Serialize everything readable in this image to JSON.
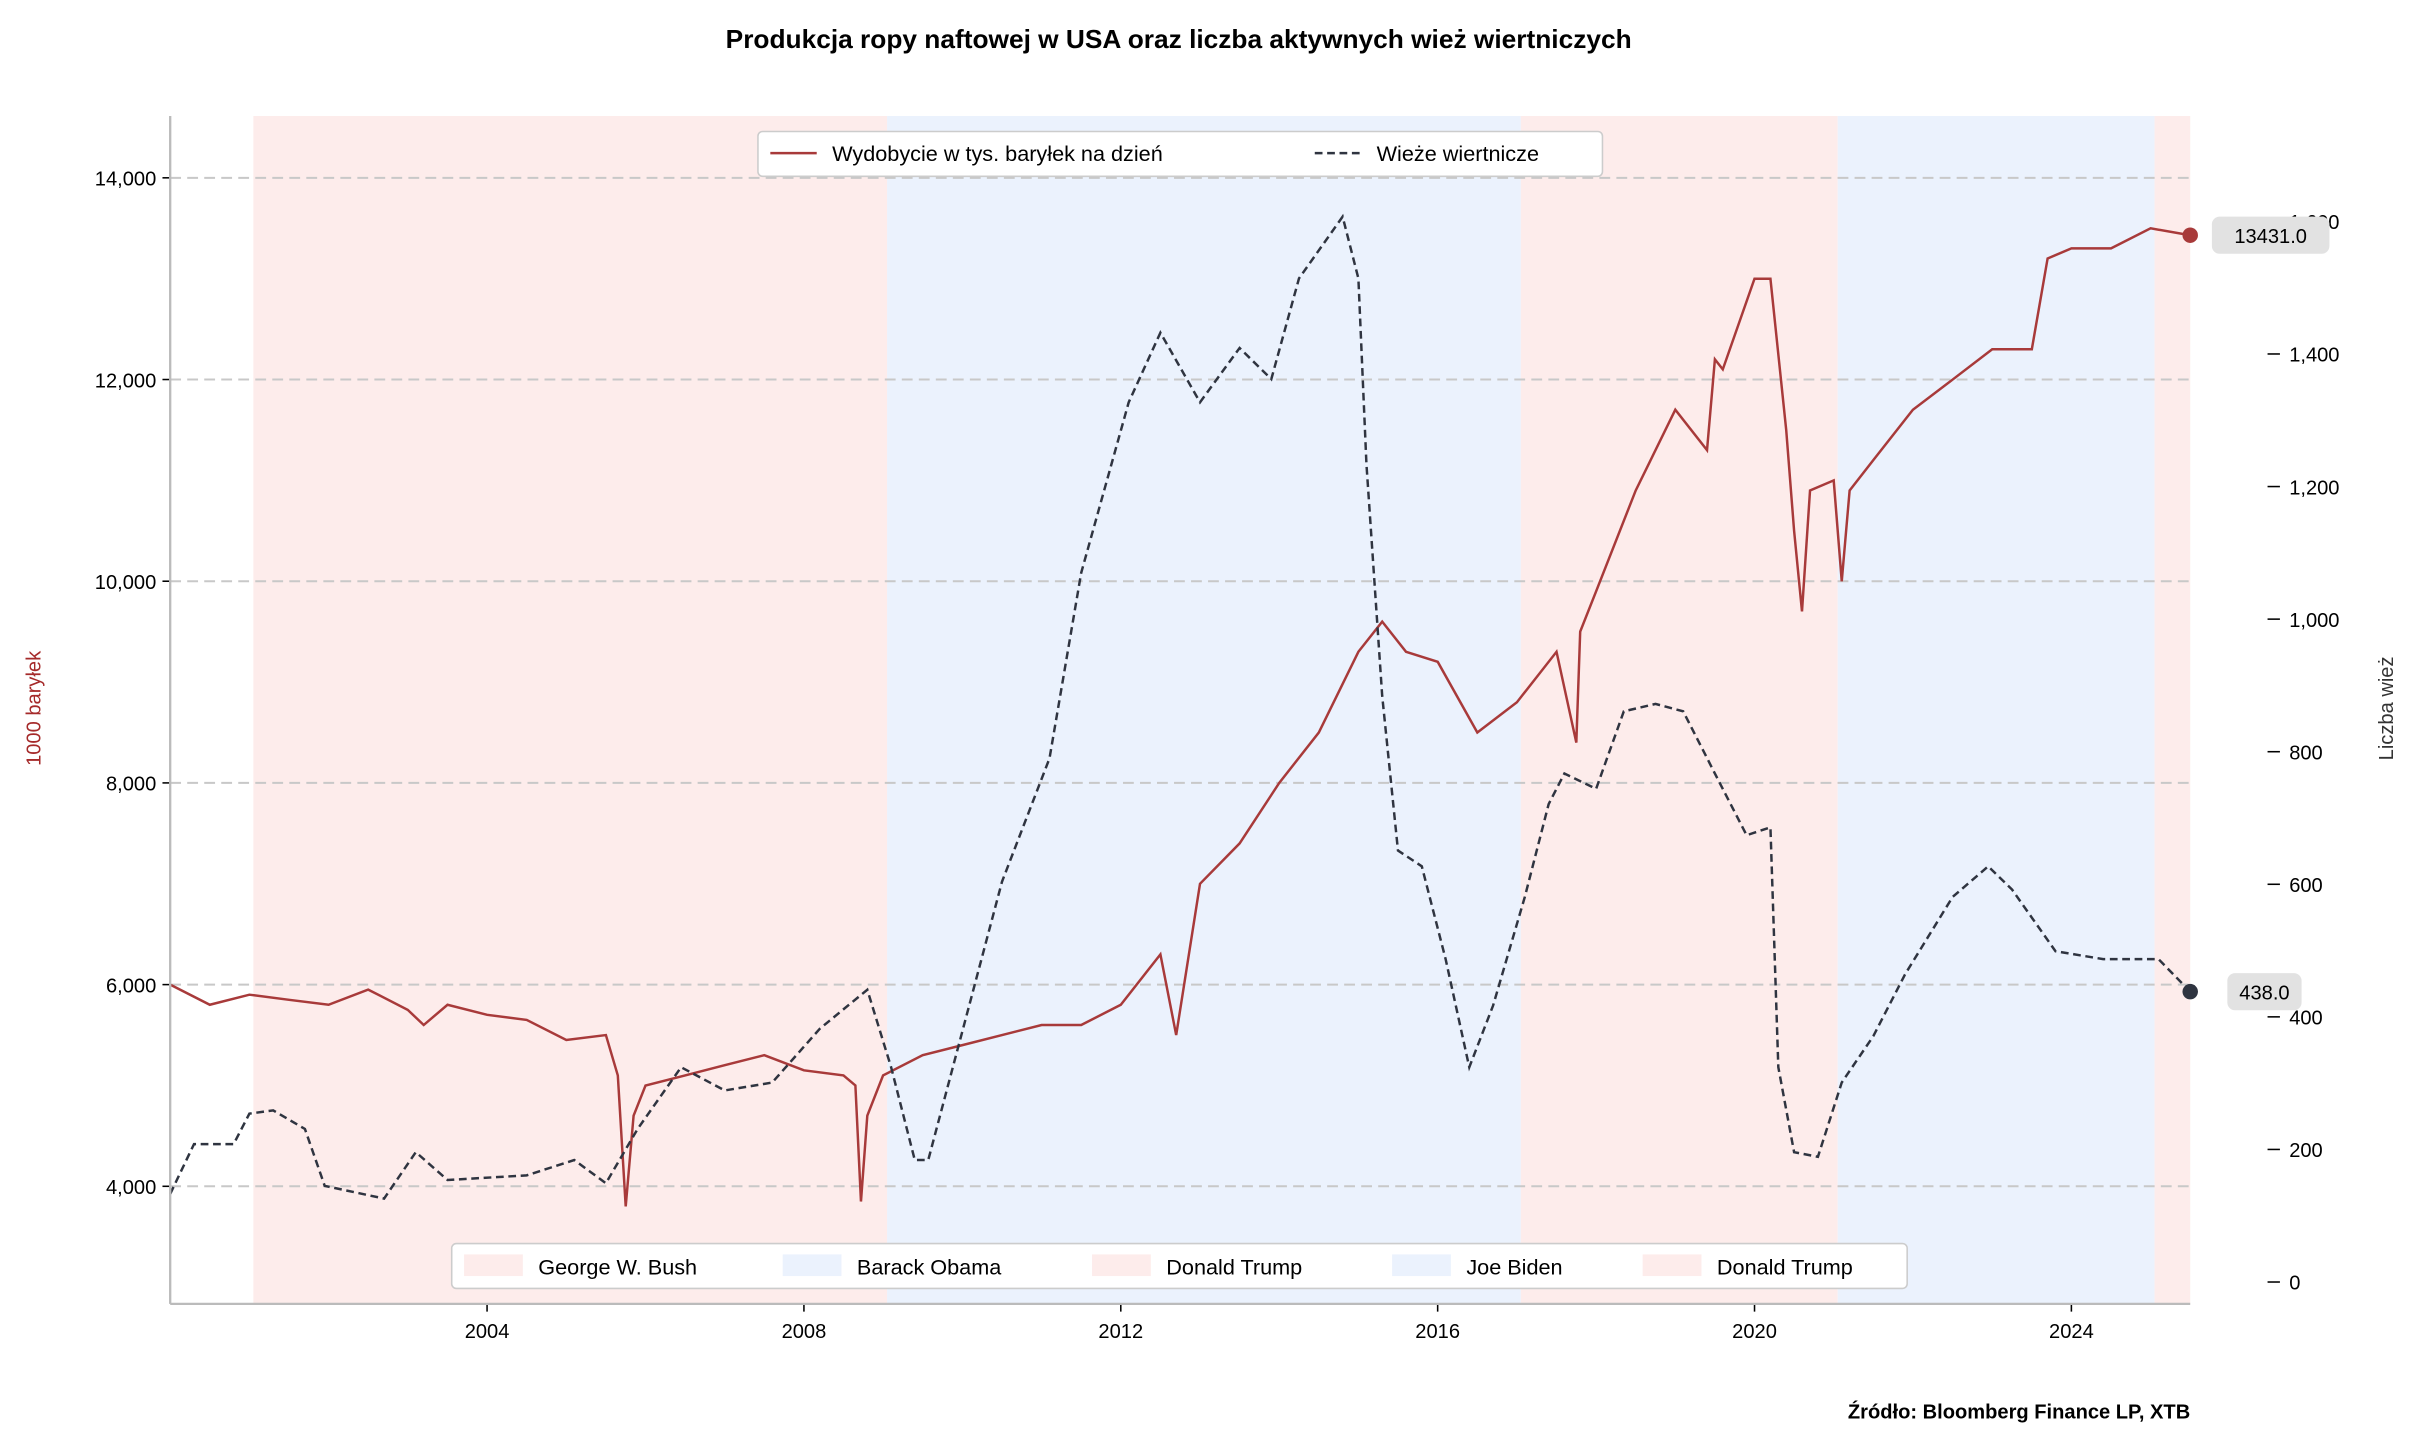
{
  "chart_data": {
    "type": "line",
    "title": "Produkcja ropy naftowej w USA oraz liczba aktywnych wież wiertniczych",
    "source": "Źródło: Bloomberg Finance LP, XTB",
    "xlim": [
      2000.0,
      2025.5
    ],
    "x_ticks": [
      "2004",
      "2008",
      "2012",
      "2016",
      "2020",
      "2024"
    ],
    "x_tick_values": [
      2004,
      2008,
      2012,
      2016,
      2020,
      2024
    ],
    "left_axis": {
      "label": "1000 baryłek",
      "ylim": [
        2834,
        14613
      ],
      "ticks": [
        4000,
        6000,
        8000,
        10000,
        12000,
        14000
      ],
      "tick_labels": [
        "4,000",
        "6,000",
        "8,000",
        "10,000",
        "12,000",
        "14,000"
      ],
      "color": "#a52a2a"
    },
    "right_axis": {
      "label": "Liczba wież",
      "ylim": [
        -33,
        1759
      ],
      "ticks": [
        0,
        200,
        400,
        600,
        800,
        1000,
        1200,
        1400,
        1600
      ],
      "tick_labels": [
        "0",
        "200",
        "400",
        "600",
        "800",
        "1,000",
        "1,200",
        "1,400",
        "1,600"
      ]
    },
    "grid": "horizontal dashed (left axis)",
    "legend_placement": "top-center",
    "series": [
      {
        "name": "Wydobycie w tys. baryłek na dzień",
        "axis": "left",
        "color": "#a83a3a",
        "style": "solid",
        "x": [
          2000.0,
          2000.5,
          2001.0,
          2001.5,
          2002.0,
          2002.5,
          2003.0,
          2003.2,
          2003.5,
          2004.0,
          2004.5,
          2005.0,
          2005.5,
          2005.65,
          2005.75,
          2005.85,
          2006.0,
          2006.5,
          2007.0,
          2007.5,
          2008.0,
          2008.5,
          2008.65,
          2008.72,
          2008.8,
          2009.0,
          2009.5,
          2010.0,
          2010.5,
          2011.0,
          2011.5,
          2012.0,
          2012.5,
          2012.7,
          2013.0,
          2013.5,
          2014.0,
          2014.5,
          2015.0,
          2015.3,
          2015.6,
          2016.0,
          2016.5,
          2017.0,
          2017.5,
          2017.75,
          2017.8,
          2018.0,
          2018.5,
          2019.0,
          2019.4,
          2019.5,
          2019.6,
          2020.0,
          2020.2,
          2020.4,
          2020.5,
          2020.6,
          2020.7,
          2021.0,
          2021.1,
          2021.2,
          2021.5,
          2022.0,
          2022.5,
          2023.0,
          2023.5,
          2023.7,
          2024.0,
          2024.5,
          2025.0,
          2025.5
        ],
        "values": [
          6000,
          5800,
          5900,
          5850,
          5800,
          5950,
          5750,
          5600,
          5800,
          5700,
          5650,
          5450,
          5500,
          5100,
          3800,
          4700,
          5000,
          5100,
          5200,
          5300,
          5150,
          5100,
          5000,
          3850,
          4700,
          5100,
          5300,
          5400,
          5500,
          5600,
          5600,
          5800,
          6300,
          5500,
          7000,
          7400,
          8000,
          8500,
          9300,
          9600,
          9300,
          9200,
          8500,
          8800,
          9300,
          8400,
          9500,
          9900,
          10900,
          11700,
          11300,
          12200,
          12100,
          13000,
          13000,
          11500,
          10500,
          9700,
          10900,
          11000,
          10000,
          10900,
          11200,
          11700,
          12000,
          12300,
          12300,
          13200,
          13300,
          13300,
          13500,
          13431
        ]
      },
      {
        "name": "Wieże wiertnicze",
        "axis": "right",
        "color": "#2f3440",
        "style": "dashed",
        "x": [
          2000.0,
          2000.3,
          2000.8,
          2001.0,
          2001.3,
          2001.7,
          2001.95,
          2002.7,
          2003.1,
          2003.5,
          2004.5,
          2005.1,
          2005.5,
          2005.9,
          2006.45,
          2007.0,
          2007.6,
          2008.2,
          2008.8,
          2009.1,
          2009.4,
          2009.57,
          2010.5,
          2011.1,
          2011.5,
          2012.1,
          2012.5,
          2013.0,
          2013.5,
          2013.9,
          2014.25,
          2014.8,
          2015.0,
          2015.1,
          2015.3,
          2015.5,
          2015.8,
          2016.1,
          2016.4,
          2016.7,
          2017.1,
          2017.4,
          2017.6,
          2018.0,
          2018.35,
          2018.75,
          2019.1,
          2019.5,
          2019.9,
          2020.2,
          2020.3,
          2020.5,
          2020.8,
          2021.1,
          2021.5,
          2021.9,
          2022.5,
          2022.95,
          2023.25,
          2023.8,
          2024.4,
          2025.1,
          2025.5
        ],
        "values": [
          133,
          208,
          208,
          254,
          259,
          231,
          145,
          126,
          196,
          154,
          161,
          184,
          149,
          231,
          324,
          289,
          301,
          382,
          441,
          324,
          184,
          184,
          604,
          790,
          1070,
          1327,
          1432,
          1327,
          1409,
          1362,
          1514,
          1607,
          1514,
          1234,
          884,
          651,
          627,
          487,
          324,
          417,
          581,
          721,
          767,
          744,
          861,
          872,
          861,
          767,
          674,
          686,
          324,
          196,
          189,
          301,
          371,
          464,
          581,
          627,
          592,
          499,
          487,
          487,
          438
        ]
      }
    ],
    "end_labels": [
      {
        "series": 0,
        "text": "13431.0"
      },
      {
        "series": 1,
        "text": "438.0"
      }
    ],
    "shaded_periods": [
      {
        "name": "George W. Bush",
        "start": 2001.05,
        "end": 2009.05,
        "color": "#fdeceb"
      },
      {
        "name": "Barack Obama",
        "start": 2009.05,
        "end": 2017.05,
        "color": "#ebf2fd"
      },
      {
        "name": "Donald Trump",
        "start": 2017.05,
        "end": 2021.05,
        "color": "#fdeceb"
      },
      {
        "name": "Joe Biden",
        "start": 2021.05,
        "end": 2025.05,
        "color": "#ebf2fd"
      },
      {
        "name": "Donald Trump",
        "start": 2025.05,
        "end": 2025.5,
        "color": "#fdeceb"
      }
    ]
  }
}
